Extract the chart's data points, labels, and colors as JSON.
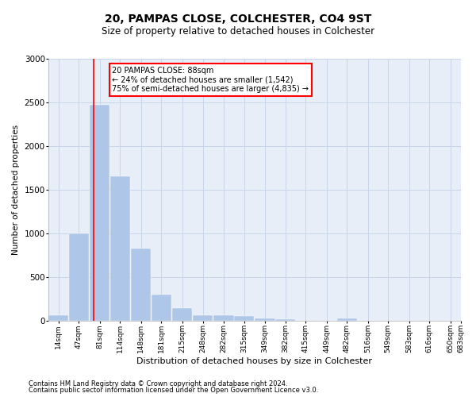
{
  "title": "20, PAMPAS CLOSE, COLCHESTER, CO4 9ST",
  "subtitle": "Size of property relative to detached houses in Colchester",
  "xlabel": "Distribution of detached houses by size in Colchester",
  "ylabel": "Number of detached properties",
  "footnote1": "Contains HM Land Registry data © Crown copyright and database right 2024.",
  "footnote2": "Contains public sector information licensed under the Open Government Licence v3.0.",
  "annotation_title": "20 PAMPAS CLOSE: 88sqm",
  "annotation_line1": "← 24% of detached houses are smaller (1,542)",
  "annotation_line2": "75% of semi-detached houses are larger (4,835) →",
  "property_size": 88,
  "bar_left_edges": [
    14,
    47,
    81,
    114,
    148,
    181,
    215,
    248,
    282,
    315,
    349,
    382,
    415,
    449,
    482,
    516,
    549,
    583,
    616,
    650
  ],
  "bar_widths": [
    33,
    33,
    33,
    33,
    33,
    33,
    33,
    33,
    33,
    33,
    33,
    33,
    33,
    33,
    33,
    33,
    33,
    33,
    33,
    33
  ],
  "bar_heights": [
    60,
    1000,
    2470,
    1650,
    830,
    300,
    145,
    60,
    60,
    50,
    30,
    20,
    0,
    0,
    30,
    0,
    0,
    0,
    0,
    0
  ],
  "bar_color": "#aec6e8",
  "bar_edge_color": "white",
  "tick_labels": [
    "14sqm",
    "47sqm",
    "81sqm",
    "114sqm",
    "148sqm",
    "181sqm",
    "215sqm",
    "248sqm",
    "282sqm",
    "315sqm",
    "349sqm",
    "382sqm",
    "415sqm",
    "449sqm",
    "482sqm",
    "516sqm",
    "549sqm",
    "583sqm",
    "616sqm",
    "650sqm",
    "683sqm"
  ],
  "ylim": [
    0,
    3000
  ],
  "xlim": [
    14,
    683
  ],
  "red_line_x": 88,
  "grid_color": "#c8d4e8",
  "background_color": "#e8eef8",
  "title_fontsize": 10,
  "subtitle_fontsize": 8.5,
  "ylabel_fontsize": 7.5,
  "xlabel_fontsize": 8,
  "tick_fontsize": 6.5,
  "ytick_fontsize": 7.5,
  "footnote_fontsize": 6,
  "annotation_fontsize": 7
}
